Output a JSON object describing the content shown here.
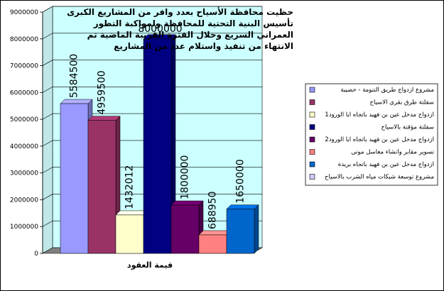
{
  "chart_data": {
    "type": "bar",
    "title_lines": [
      "حظيت محافظة الأسياح بعدد وافر من المشاريع الكبرى",
      "تأسيس البنية التحتية للمحافظة ولمواكبة التطور",
      "العمراني السريع وخلال الفترة القريبة الماضية تم",
      "الانتهاء من تنفيذ واستلام عدد من المشاريع"
    ],
    "xlabel": "قيمة العقود",
    "ylim": [
      0,
      9000000
    ],
    "yticks": [
      0,
      1000000,
      2000000,
      3000000,
      4000000,
      5000000,
      6000000,
      7000000,
      8000000,
      9000000
    ],
    "yticks_text": [
      "0",
      "1000000",
      "2000000",
      "3000000",
      "4000000",
      "5000000",
      "6000000",
      "7000000",
      "8000000",
      "9000000"
    ],
    "grid": true,
    "legend_position": "right",
    "series": [
      {
        "name": "مشروع ازدواج طريق التنومة - خصيبة",
        "value": 5584500,
        "label": "5584500",
        "color": "#9999ff"
      },
      {
        "name": "سفلتة طرق بقرى الاسياح",
        "value": 4959500,
        "label": "4959500",
        "color": "#993366"
      },
      {
        "name": "ازدواج مدخل عين بن فهيد باتجاه ابا الورود1",
        "value": 1432012,
        "label": "1432012",
        "color": "#ffffcc"
      },
      {
        "name": "سفلتة مؤقتة بالاسياح",
        "value": 8000000,
        "label": "8000000",
        "color": "#000080"
      },
      {
        "name": "ازدواج مدخل عين بن فهيد باتجاه ابا الورود2",
        "value": 1800000,
        "label": "1800000",
        "color": "#660066"
      },
      {
        "name": "تسوير مقابر وانشاء مغاسل موتى",
        "value": 688950,
        "label": "688950",
        "color": "#ff8080"
      },
      {
        "name": "ازدواج مدخل عين بن فهيد باتجاه بريدة",
        "value": 1650000,
        "label": "1650000",
        "color": "#0066cc"
      },
      {
        "name": "مشروع توسعة شبكات مياه الشرب بالاسياح",
        "value": null,
        "label": "",
        "color": "#ccccff"
      }
    ],
    "colors": {
      "plot_background": "#ccffff",
      "floor": "#808080",
      "grid": "#000000",
      "frame_border": "#000000"
    }
  }
}
